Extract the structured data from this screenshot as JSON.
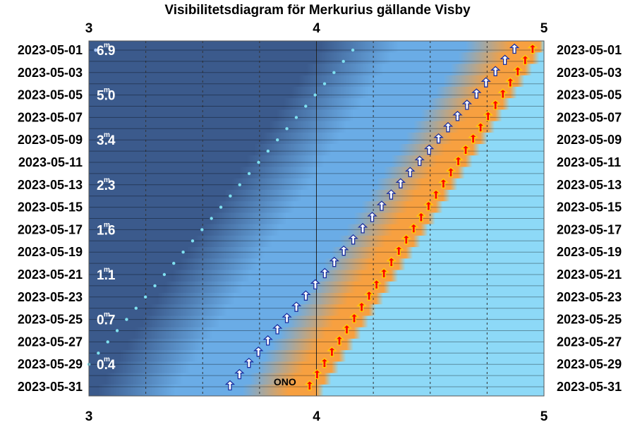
{
  "chart_data": {
    "type": "scatter",
    "title": "Visibilitetsdiagram för Merkurius gällande Visby",
    "x_ticks": [
      "3",
      "4",
      "5"
    ],
    "xlim": [
      3,
      5
    ],
    "grid_x": [
      3.25,
      3.5,
      3.75,
      4.25,
      4.5,
      4.75
    ],
    "date_labels": [
      "2023-05-01",
      "2023-05-03",
      "2023-05-05",
      "2023-05-07",
      "2023-05-09",
      "2023-05-11",
      "2023-05-13",
      "2023-05-15",
      "2023-05-17",
      "2023-05-19",
      "2023-05-21",
      "2023-05-23",
      "2023-05-25",
      "2023-05-27",
      "2023-05-29",
      "2023-05-31"
    ],
    "days": 31,
    "magnitudes": [
      {
        "day": 1,
        "value": "6.9"
      },
      {
        "day": 5,
        "value": "5.0"
      },
      {
        "day": 9,
        "value": "3.4"
      },
      {
        "day": 13,
        "value": "2.3"
      },
      {
        "day": 17,
        "value": "1.6"
      },
      {
        "day": 21,
        "value": "1.1"
      },
      {
        "day": 25,
        "value": "0.7"
      },
      {
        "day": 29,
        "value": "0.4"
      }
    ],
    "mercury_rise": {
      "x_start": 3.62,
      "x_end": 4.87
    },
    "sun_rise": {
      "x_start": 3.97,
      "x_end": 4.95
    },
    "dawn_dots": {
      "x_start": 4.16,
      "x_end": 3.0,
      "day_start": 1,
      "day_end": 29
    },
    "direction_label": {
      "text": "ONO",
      "day": 31
    },
    "colors": {
      "night": "#3b5a8c",
      "twilight": "#6aace6",
      "glow": "#f7a040",
      "day": "#8dd9f7",
      "dots": "#7fe0f0",
      "mercury_arrow": "#ffffff",
      "sun_arrow": "#ff0000"
    }
  }
}
